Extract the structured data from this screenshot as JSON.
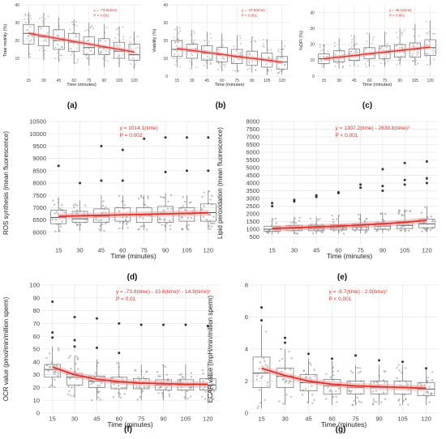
{
  "chart_data": [
    {
      "panel": "(a)",
      "type": "box",
      "xlabel": "Time (minutes)",
      "ylabel": "Total motility (%)",
      "categories": [
        "15",
        "30",
        "45",
        "60",
        "75",
        "90",
        "105",
        "120"
      ],
      "ylim": [
        0,
        40
      ],
      "yticks": [
        10,
        20,
        30,
        40
      ],
      "median": [
        24,
        22,
        20,
        19,
        16,
        16,
        14,
        12
      ],
      "q1": [
        18,
        17,
        15,
        14,
        12,
        12,
        10,
        9
      ],
      "q3": [
        29,
        28,
        26,
        24,
        22,
        21,
        19,
        18
      ],
      "whisker_low": [
        10,
        9,
        8,
        7,
        6,
        5,
        5,
        4
      ],
      "whisker_high": [
        36,
        35,
        33,
        32,
        30,
        29,
        28,
        25
      ],
      "fit": [
        24,
        22.5,
        21,
        19.5,
        18,
        16.5,
        15,
        13.5
      ],
      "annotation": [
        "y = -73.8(time)",
        "P < 0.001"
      ],
      "grid": true
    },
    {
      "panel": "(b)",
      "type": "box",
      "xlabel": "Time (minutes)",
      "ylabel": "Viability (%)",
      "categories": [
        "15",
        "30",
        "45",
        "60",
        "75",
        "90",
        "105",
        "120"
      ],
      "ylim": [
        0,
        40
      ],
      "yticks": [
        0,
        10,
        20,
        30,
        40
      ],
      "median": [
        15,
        14,
        13,
        12,
        11,
        10,
        9,
        8
      ],
      "q1": [
        11,
        10,
        9,
        8,
        7,
        6,
        5,
        4
      ],
      "q3": [
        20,
        18,
        17,
        16,
        15,
        14,
        13,
        11
      ],
      "whisker_low": [
        5,
        4,
        4,
        3,
        2,
        2,
        1,
        1
      ],
      "whisker_high": [
        28,
        26,
        25,
        24,
        23,
        22,
        21,
        20
      ],
      "fit": [
        15.5,
        14.5,
        13.3,
        12.2,
        11,
        10,
        9,
        7.8
      ],
      "annotation": [
        "y = -37.9(time)",
        "P < 0.001"
      ],
      "grid": true
    },
    {
      "panel": "(c)",
      "type": "box",
      "xlabel": "Time (minutes)",
      "ylabel": "%DFI (%)",
      "categories": [
        "15",
        "30",
        "45",
        "60",
        "75",
        "90",
        "105",
        "120"
      ],
      "ylim": [
        0,
        45
      ],
      "yticks": [
        0,
        10,
        20,
        30,
        40
      ],
      "median": [
        11,
        12,
        13,
        14,
        15,
        16,
        17,
        18
      ],
      "q1": [
        8,
        9,
        10,
        11,
        11,
        12,
        12,
        13
      ],
      "q3": [
        14,
        16,
        17,
        18,
        19,
        20,
        21,
        23
      ],
      "whisker_low": [
        5,
        5,
        6,
        6,
        6,
        7,
        7,
        7
      ],
      "whisker_high": [
        20,
        24,
        26,
        27,
        28,
        30,
        33,
        35
      ],
      "fit": [
        11,
        12,
        13,
        14.2,
        15.2,
        16.2,
        17.3,
        18.4
      ],
      "annotation": [
        "y = 46.1(time)",
        "P < 0.001"
      ],
      "grid": true
    },
    {
      "panel": "(d)",
      "type": "box",
      "xlabel": "Time (minutes)",
      "ylabel": "ROS synthesis (mean fluorescence)",
      "categories": [
        "15",
        "30",
        "45",
        "60",
        "75",
        "90",
        "105",
        "120"
      ],
      "ylim": [
        5500,
        10500
      ],
      "yticks": [
        6000,
        6500,
        7000,
        7500,
        8000,
        8500,
        9000,
        9500,
        10000,
        10500
      ],
      "median": [
        6600,
        6550,
        6650,
        6700,
        6700,
        6750,
        6750,
        6800
      ],
      "q1": [
        6350,
        6400,
        6400,
        6450,
        6400,
        6400,
        6450,
        6450
      ],
      "q3": [
        6900,
        6850,
        6950,
        7000,
        7000,
        7050,
        7000,
        7150
      ],
      "whisker_low": [
        6000,
        6050,
        6050,
        6100,
        6100,
        6050,
        6100,
        6100
      ],
      "whisker_high": [
        7400,
        7300,
        7500,
        7500,
        7500,
        7600,
        7500,
        7700
      ],
      "fit": [
        6650,
        6670,
        6690,
        6710,
        6730,
        6750,
        6770,
        6790
      ],
      "outliers": [
        [
          0,
          8700
        ],
        [
          1,
          8000
        ],
        [
          2,
          9500
        ],
        [
          3,
          9350
        ],
        [
          4,
          9800
        ],
        [
          5,
          9850
        ],
        [
          6,
          9850
        ],
        [
          7,
          9850
        ],
        [
          2,
          8100
        ],
        [
          3,
          8100
        ],
        [
          5,
          8450
        ],
        [
          6,
          8500
        ],
        [
          7,
          8500
        ]
      ],
      "annotation": [
        "y = 1014.1(time)",
        "P = 0.002"
      ],
      "grid": true
    },
    {
      "panel": "(e)",
      "type": "box",
      "xlabel": "Time (minutes)",
      "ylabel": "Lipid peroxidation (mean fluorescence)",
      "categories": [
        "15",
        "30",
        "45",
        "60",
        "75",
        "90",
        "105",
        "120"
      ],
      "ylim": [
        0,
        8000
      ],
      "yticks": [
        500,
        1000,
        1500,
        2000,
        2500,
        3000,
        3500,
        4000,
        4500,
        5000,
        5500,
        6000,
        6500,
        7000,
        7500,
        8000
      ],
      "median": [
        1000,
        1050,
        1050,
        1100,
        1150,
        1200,
        1250,
        1350
      ],
      "q1": [
        850,
        900,
        900,
        950,
        950,
        1000,
        1050,
        1100
      ],
      "q3": [
        1200,
        1250,
        1250,
        1300,
        1350,
        1400,
        1500,
        1650
      ],
      "whisker_low": [
        650,
        700,
        700,
        700,
        750,
        750,
        800,
        850
      ],
      "whisker_high": [
        1700,
        1800,
        1800,
        1900,
        2000,
        2100,
        2300,
        2500
      ],
      "fit": [
        1050,
        1100,
        1150,
        1200,
        1270,
        1350,
        1450,
        1580
      ],
      "outliers": [
        [
          0,
          2700
        ],
        [
          0,
          2500
        ],
        [
          1,
          2900
        ],
        [
          1,
          2800
        ],
        [
          2,
          3200
        ],
        [
          2,
          3100
        ],
        [
          3,
          3400
        ],
        [
          3,
          3350
        ],
        [
          4,
          3900
        ],
        [
          4,
          3700
        ],
        [
          5,
          4900
        ],
        [
          5,
          3800
        ],
        [
          5,
          3500
        ],
        [
          6,
          5300
        ],
        [
          6,
          4200
        ],
        [
          6,
          3900
        ],
        [
          7,
          5400
        ],
        [
          7,
          4300
        ],
        [
          7,
          4000
        ]
      ],
      "annotation": [
        "y = 1307.2(time) - 2639.8(time)²",
        "P < 0.001"
      ],
      "grid": true
    },
    {
      "panel": "(f)",
      "type": "box",
      "xlabel": "Time (minutes)",
      "ylabel": "OCR value (pmol/min/million sperm)",
      "categories": [
        "15",
        "30",
        "45",
        "60",
        "75",
        "90",
        "105",
        "120"
      ],
      "ylim": [
        0,
        100
      ],
      "yticks": [
        0,
        10,
        20,
        30,
        40,
        50,
        60,
        70,
        80,
        90,
        100
      ],
      "median": [
        34,
        28,
        25,
        24,
        23,
        22,
        22,
        22
      ],
      "q1": [
        28,
        22,
        20,
        19,
        19,
        18,
        18,
        18
      ],
      "q3": [
        38,
        31,
        29,
        28,
        27,
        26,
        26,
        27
      ],
      "whisker_low": [
        20,
        12,
        10,
        12,
        10,
        10,
        10,
        10
      ],
      "whisker_high": [
        52,
        45,
        42,
        40,
        38,
        38,
        38,
        40
      ],
      "fit": [
        36,
        30,
        26.5,
        24.5,
        23.5,
        23,
        22.5,
        22.5
      ],
      "outliers": [
        [
          0,
          87
        ],
        [
          0,
          63
        ],
        [
          0,
          59
        ],
        [
          1,
          75
        ],
        [
          1,
          57
        ],
        [
          1,
          52
        ],
        [
          2,
          74
        ],
        [
          2,
          51
        ],
        [
          3,
          70
        ],
        [
          3,
          47
        ],
        [
          4,
          69
        ],
        [
          5,
          69
        ],
        [
          6,
          69
        ],
        [
          7,
          68
        ]
      ],
      "annotation": [
        "y = -73.8(time) - 33.6(time)² - 14.9(time)³",
        "P = 0.01"
      ],
      "grid": true
    },
    {
      "panel": "(g)",
      "type": "box",
      "xlabel": "Time (minutes)",
      "ylabel": "ECAR value (mpH/min/million sperm)",
      "categories": [
        "15",
        "30",
        "45",
        "60",
        "75",
        "90",
        "105",
        "120"
      ],
      "ylim": [
        0,
        8
      ],
      "yticks": [
        0,
        2,
        4,
        6,
        8
      ],
      "median": [
        2.5,
        2.3,
        1.9,
        1.7,
        1.6,
        1.6,
        1.6,
        1.5
      ],
      "q1": [
        1.6,
        1.6,
        1.4,
        1.2,
        1.2,
        1.2,
        1.2,
        1.1
      ],
      "q3": [
        3.5,
        2.8,
        2.4,
        2.1,
        2.0,
        2.0,
        2.0,
        1.9
      ],
      "whisker_low": [
        0.3,
        0.5,
        0.6,
        0.5,
        0.5,
        0.5,
        0.5,
        0.5
      ],
      "whisker_high": [
        5.5,
        4.0,
        3.4,
        3.2,
        3.0,
        3.0,
        3.0,
        2.7
      ],
      "fit": [
        2.8,
        2.35,
        2.0,
        1.8,
        1.7,
        1.65,
        1.6,
        1.55
      ],
      "outliers": [
        [
          0,
          6.6
        ],
        [
          0,
          5.8
        ],
        [
          1,
          4.7
        ],
        [
          1,
          4.4
        ],
        [
          2,
          3.7
        ],
        [
          3,
          3.4
        ],
        [
          4,
          3.6
        ],
        [
          5,
          3.3
        ],
        [
          6,
          3.2
        ],
        [
          7,
          2.8
        ]
      ],
      "annotation": [
        "y = -8.7(time) - 2.9(time)²",
        "P < 0.001"
      ],
      "grid": true
    }
  ],
  "colors": {
    "fit_line": "#e0302a",
    "fit_band": "#f2a0a0",
    "points": "#8a8a8a",
    "box": "#555555",
    "grid": "#e6e6e6",
    "annotation": "#e0302a"
  }
}
